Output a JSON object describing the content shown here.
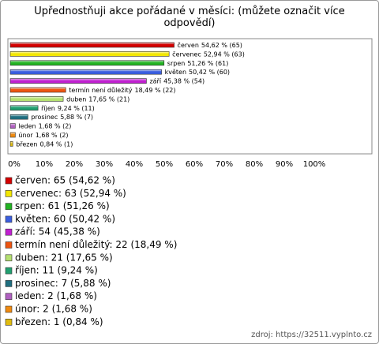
{
  "chart_data": {
    "type": "bar",
    "orientation": "horizontal",
    "title": "Upřednostňuji akce pořádané v měsíci: (můžete označit více odpovědí)",
    "categories": [
      "červen",
      "červenec",
      "srpen",
      "květen",
      "září",
      "termín není důležitý",
      "duben",
      "říjen",
      "prosinec",
      "leden",
      "únor",
      "březen"
    ],
    "values": [
      54.62,
      52.94,
      51.26,
      50.42,
      45.38,
      18.49,
      17.65,
      9.24,
      5.88,
      1.68,
      1.68,
      0.84
    ],
    "value_labels": [
      "54,62 % (65)",
      "52,94 % (63)",
      "51,26 % (61)",
      "50,42 % (60)",
      "45,38 % (54)",
      "18,49 % (22)",
      "17,65 % (21)",
      "9,24 % (11)",
      "5,88 % (7)",
      "1,68 % (2)",
      "1,68 % (2)",
      "0,84 % (1)"
    ],
    "colors": [
      "#d40000",
      "#f2e600",
      "#22b322",
      "#3a5ee0",
      "#c020d0",
      "#ee5511",
      "#b4e070",
      "#21a070",
      "#1f6f80",
      "#b060c0",
      "#f08a10",
      "#dfbb10"
    ],
    "legend": [
      "červen: 65 (54,62 %)",
      "červenec: 63 (52,94 %)",
      "srpen: 61 (51,26 %)",
      "květen: 60 (50,42 %)",
      "září: 54 (45,38 %)",
      "termín není důležitý: 22 (18,49 %)",
      "duben: 21 (17,65 %)",
      "říjen: 11 (9,24 %)",
      "prosinec: 7 (5,88 %)",
      "leden: 2 (1,68 %)",
      "únor: 2 (1,68 %)",
      "březen: 1 (0,84 %)"
    ],
    "xlim": [
      0,
      100
    ],
    "xticks": [
      {
        "value": 0,
        "label": "0%"
      },
      {
        "value": 10,
        "label": "10%"
      },
      {
        "value": 20,
        "label": "20%"
      },
      {
        "value": 30,
        "label": "30%"
      },
      {
        "value": 40,
        "label": "40%"
      },
      {
        "value": 50,
        "label": "50%"
      },
      {
        "value": 60,
        "label": "60%"
      },
      {
        "value": 70,
        "label": "70%"
      },
      {
        "value": 80,
        "label": "80%"
      },
      {
        "value": 90,
        "label": "90%"
      },
      {
        "value": 100,
        "label": "100%"
      }
    ],
    "source": "zdroj: https://32511.vyplnto.cz"
  }
}
